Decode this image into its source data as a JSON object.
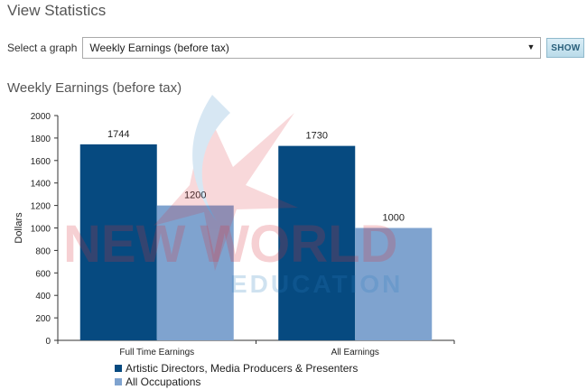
{
  "page": {
    "title": "View Statistics"
  },
  "controls": {
    "select_label": "Select a graph",
    "selected_graph": "Weekly Earnings (before tax)",
    "show_label": "SHOW"
  },
  "chart_title": "Weekly Earnings (before tax)",
  "colors": {
    "series1": "#064a80",
    "series2": "#7fa3cf",
    "axis": "#333333"
  },
  "chart_data": {
    "type": "bar",
    "categories": [
      "Full Time Earnings",
      "All Earnings"
    ],
    "series": [
      {
        "name": "Artistic Directors, Media Producers & Presenters",
        "values": [
          1744,
          1730
        ]
      },
      {
        "name": "All Occupations",
        "values": [
          1200,
          1000
        ]
      }
    ],
    "ylabel": "Dollars",
    "xlabel": "",
    "ylim": [
      0,
      2000
    ],
    "yticks": [
      0,
      200,
      400,
      600,
      800,
      1000,
      1200,
      1400,
      1600,
      1800,
      2000
    ],
    "legend_position": "bottom-left",
    "grid": false
  },
  "watermark": {
    "line1": "NEW WORLD",
    "line2": "EDUCATION"
  }
}
